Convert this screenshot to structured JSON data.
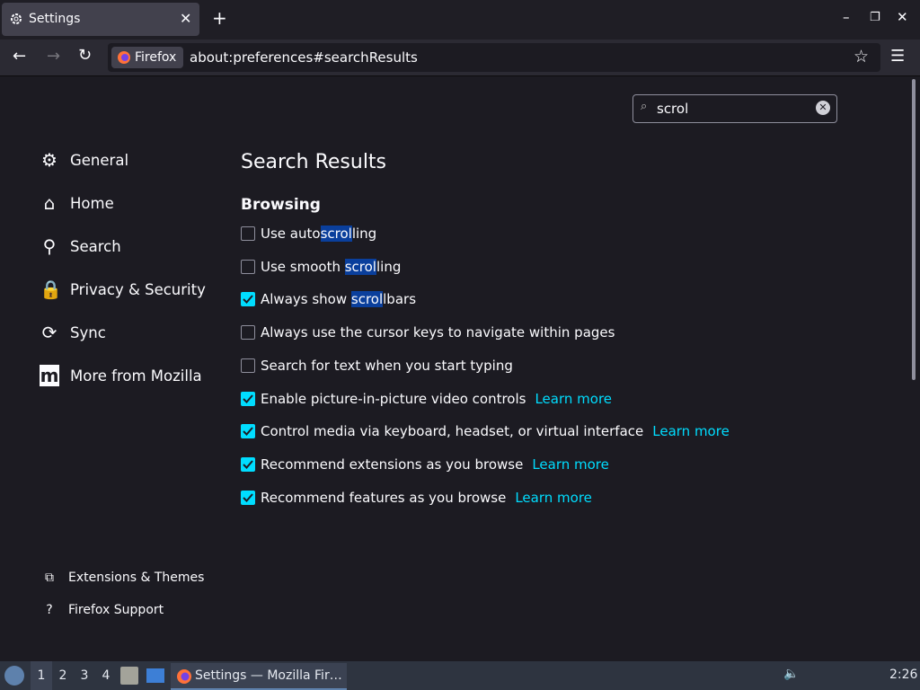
{
  "browser": {
    "tab_title": "Settings",
    "identity": "Firefox",
    "url": "about:preferences#searchResults"
  },
  "search": {
    "query": "scrol"
  },
  "sidebar": {
    "items": [
      "General",
      "Home",
      "Search",
      "Privacy & Security",
      "Sync",
      "More from Mozilla"
    ],
    "footer": [
      "Extensions & Themes",
      "Firefox Support"
    ]
  },
  "content": {
    "heading": "Search Results",
    "section": "Browsing",
    "options": [
      {
        "parts": [
          "Use auto",
          "scrol",
          "ling"
        ],
        "highlight": 1,
        "checked": false
      },
      {
        "parts": [
          "Use smooth ",
          "scrol",
          "ling"
        ],
        "highlight": 1,
        "checked": false
      },
      {
        "parts": [
          "Always show ",
          "scrol",
          "lbars"
        ],
        "highlight": 1,
        "checked": true
      },
      {
        "parts": [
          "Always use the cursor keys to navigate within pages"
        ],
        "checked": false
      },
      {
        "parts": [
          "Search for text when you start typing"
        ],
        "checked": false
      },
      {
        "parts": [
          "Enable picture-in-picture video controls"
        ],
        "checked": true,
        "link": "Learn more"
      },
      {
        "parts": [
          "Control media via keyboard, headset, or virtual interface"
        ],
        "checked": true,
        "link": "Learn more"
      },
      {
        "parts": [
          "Recommend extensions as you browse"
        ],
        "checked": true,
        "link": "Learn more"
      },
      {
        "parts": [
          "Recommend features as you browse"
        ],
        "checked": true,
        "link": "Learn more"
      }
    ]
  },
  "taskbar": {
    "workspaces": [
      "1",
      "2",
      "3",
      "4"
    ],
    "window": "Settings — Mozilla Fir…",
    "clock": "2:26"
  }
}
